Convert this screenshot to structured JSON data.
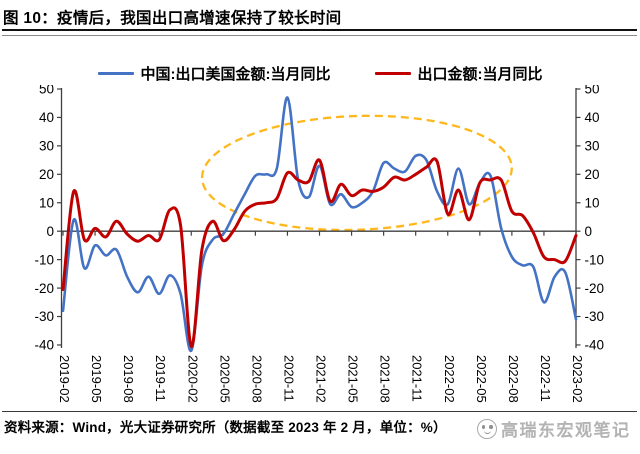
{
  "header": {
    "title": "图 10：疫情后，我国出口高增速保持了较长时间"
  },
  "legend": [
    {
      "label": "中国:出口美国金额:当月同比",
      "color": "#4472C4"
    },
    {
      "label": "出口金额:当月同比",
      "color": "#C00000"
    }
  ],
  "footer": {
    "source": "资料来源：Wind，光大证券研究所（数据截至 2023 年 2 月，单位：%）",
    "watermark": "高瑞东宏观笔记"
  },
  "chart_data": {
    "type": "line",
    "title": "",
    "xlabel": "",
    "ylabel": "",
    "unit": "%",
    "x": [
      "2019-02",
      "2019-03",
      "2019-04",
      "2019-05",
      "2019-06",
      "2019-07",
      "2019-08",
      "2019-09",
      "2019-10",
      "2019-11",
      "2019-12",
      "2020-01",
      "2020-02",
      "2020-03",
      "2020-04",
      "2020-05",
      "2020-06",
      "2020-07",
      "2020-08",
      "2020-09",
      "2020-10",
      "2020-11",
      "2020-12",
      "2021-01",
      "2021-02",
      "2021-03",
      "2021-04",
      "2021-05",
      "2021-06",
      "2021-07",
      "2021-08",
      "2021-09",
      "2021-10",
      "2021-11",
      "2021-12",
      "2022-01",
      "2022-02",
      "2022-03",
      "2022-04",
      "2022-05",
      "2022-06",
      "2022-07",
      "2022-08",
      "2022-09",
      "2022-10",
      "2022-11",
      "2022-12",
      "2023-01",
      "2023-02"
    ],
    "x_tick_labels": [
      "2019-02",
      "2019-05",
      "2019-08",
      "2019-11",
      "2020-02",
      "2020-05",
      "2020-08",
      "2020-11",
      "2021-02",
      "2021-05",
      "2021-08",
      "2021-11",
      "2022-02",
      "2022-05",
      "2022-08",
      "2022-11",
      "2023-02"
    ],
    "series": [
      {
        "name": "中国:出口美国金额:当月同比",
        "color": "#4472C4",
        "width": 2.6,
        "values": [
          -28,
          4,
          -13,
          -5,
          -8.5,
          -6.5,
          -16,
          -21.5,
          -16,
          -22,
          -15.5,
          -22,
          -42,
          -12,
          -3,
          -1,
          6,
          13,
          19.5,
          20,
          22,
          47,
          18,
          12,
          23,
          9.5,
          13,
          8.5,
          10,
          14,
          24,
          22,
          21,
          26.5,
          25,
          14,
          9.5,
          22,
          9.5,
          17,
          19.5,
          1,
          -9,
          -12,
          -12.5,
          -25,
          -16,
          -14.5,
          -31
        ]
      },
      {
        "name": "出口金额:当月同比",
        "color": "#C00000",
        "width": 3,
        "values": [
          -20.5,
          14,
          -3,
          1,
          -2,
          3.5,
          -1,
          -3.5,
          -1.5,
          -3,
          7.5,
          2,
          -40.5,
          -6.5,
          3.5,
          -3.3,
          0.5,
          7,
          9.5,
          10,
          11.5,
          20.5,
          18,
          17.5,
          25,
          10.5,
          16.5,
          12.5,
          14.5,
          14,
          15.5,
          19,
          18,
          20,
          22.5,
          24.5,
          6,
          14.5,
          4,
          17,
          18,
          18,
          7,
          5.5,
          -0.5,
          -9,
          -10,
          -10.5,
          -1.5
        ]
      }
    ],
    "ylim": [
      -40,
      50
    ],
    "yticks": [
      50,
      40,
      30,
      20,
      10,
      0,
      -10,
      -20,
      -30,
      -40
    ],
    "y_axis_sides": [
      "left",
      "right"
    ],
    "grid": false,
    "zero_line": true,
    "smooth_lines": true,
    "annotation": {
      "shape": "ellipse",
      "style": "dashed",
      "color": "#FFB81C",
      "x_range_months": [
        "2020-03",
        "2022-08"
      ],
      "value_range": [
        0.5,
        40.5
      ],
      "rotation_deg": -2
    }
  }
}
